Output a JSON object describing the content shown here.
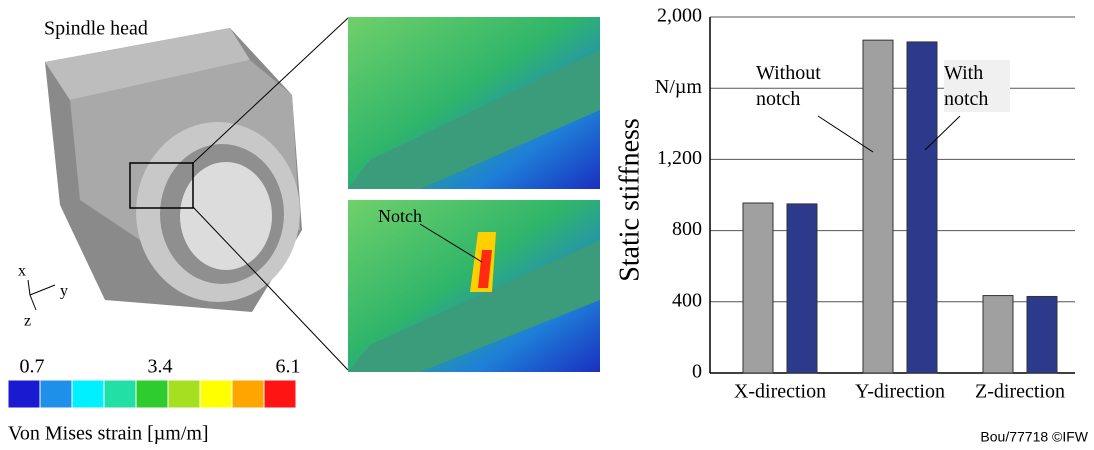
{
  "image_labels": {
    "part": "Spindle head",
    "notch": "Notch",
    "axes": [
      "x",
      "y",
      "z"
    ]
  },
  "colorbar": {
    "ticks": [
      0.7,
      3.4,
      6.1
    ],
    "colors": [
      "#1a1ad0",
      "#1e90ea",
      "#00f0ff",
      "#22dfa5",
      "#2ecc2e",
      "#a5e020",
      "#ffff00",
      "#ffa500",
      "#ff1414"
    ],
    "label": "Von Mises strain [µm/m]"
  },
  "credit": "Bou/77718 ©IFW",
  "chart_data": {
    "type": "bar",
    "y_label": "Static stiffness",
    "categories": [
      "X-direction",
      "Y-direction",
      "Z-direction"
    ],
    "series": [
      {
        "name": "Without notch",
        "color": "#a0a0a0",
        "values": [
          955,
          1870,
          435
        ]
      },
      {
        "name": "With notch",
        "color": "#2c3a8c",
        "values": [
          950,
          1860,
          430
        ]
      }
    ],
    "ylim": [
      0,
      2000
    ],
    "yticks": [
      0,
      400,
      800,
      {
        "value": 1200,
        "label": "1,200"
      },
      {
        "value": 1600,
        "label": "N/µm"
      },
      {
        "value": 2000,
        "label": "2,000"
      }
    ],
    "grid": true
  }
}
